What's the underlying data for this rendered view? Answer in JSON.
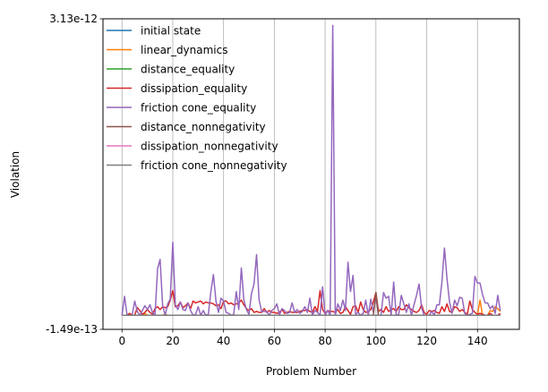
{
  "chart_data": {
    "type": "line",
    "xlabel": "Problem Number",
    "ylabel": "Violation",
    "xlim": [
      -7.5,
      156.5
    ],
    "ylim": [
      -1.49e-13,
      3.13e-12
    ],
    "x_ticks": [
      0,
      20,
      40,
      60,
      80,
      100,
      120,
      140
    ],
    "x_tick_labels": [
      "0",
      "20",
      "40",
      "60",
      "80",
      "100",
      "120",
      "140"
    ],
    "y_ticks": [
      -1.49e-13,
      3.13e-12
    ],
    "y_tick_labels": [
      "-1.49e-13",
      "3.13e-12"
    ],
    "grid": "vertical",
    "legend_position": "top-left",
    "x": {
      "start": 0,
      "end": 149,
      "step": 1
    },
    "series": [
      {
        "name": "initial state",
        "color": "#1f77b4",
        "values": "zero"
      },
      {
        "name": "linear_dynamics",
        "color": "#ff7f0e",
        "values": [
          0,
          0,
          0,
          1e-14,
          0,
          0,
          0,
          0,
          0,
          2e-14,
          0,
          0,
          0,
          0,
          0,
          0,
          0,
          1e-14,
          0,
          0,
          0,
          0,
          0,
          0,
          0,
          0,
          0,
          0,
          0,
          0,
          0,
          0,
          0,
          0,
          0,
          0,
          0,
          0,
          0,
          0,
          0,
          0,
          0,
          0,
          0,
          0,
          0,
          0,
          0,
          0,
          0,
          0,
          0,
          0,
          0,
          0,
          0,
          0,
          0,
          0,
          0,
          0,
          0,
          0,
          0,
          0,
          0,
          0,
          0,
          0,
          0,
          0,
          0,
          0,
          0,
          0,
          0,
          0,
          0,
          0,
          0,
          0,
          0,
          0,
          0,
          0,
          0,
          0,
          0,
          0,
          0,
          0,
          0,
          0,
          0,
          0,
          0,
          0,
          0,
          0,
          0,
          0,
          0,
          0,
          0,
          0,
          0,
          0,
          0,
          0,
          0,
          0,
          0,
          0,
          0,
          0,
          0,
          0,
          0,
          0,
          0,
          0,
          0,
          0,
          0,
          0,
          0,
          0,
          0,
          0,
          0,
          0,
          0,
          0,
          0,
          0,
          0,
          0,
          0,
          0,
          0,
          1.6e-13,
          0,
          0,
          0,
          5e-14,
          4e-14,
          9e-14,
          7e-14,
          4e-14,
          5e-14,
          0,
          5e-14,
          4e-14,
          7e-14
        ]
      },
      {
        "name": "distance_equality",
        "color": "#2ca02c",
        "values": "zero"
      },
      {
        "name": "dissipation_equality",
        "color": "#d62728",
        "values": [
          0,
          0,
          0,
          2e-14,
          0,
          0,
          8e-14,
          5e-14,
          1e-14,
          3e-14,
          6e-14,
          3e-14,
          1e-14,
          7e-14,
          9e-14,
          6e-14,
          9e-14,
          8e-14,
          9e-14,
          1.6e-13,
          2.6e-13,
          9e-14,
          1e-13,
          1.4e-13,
          8e-14,
          1e-13,
          1.3e-13,
          7e-14,
          1.5e-13,
          1.3e-13,
          1.4e-13,
          1.5e-13,
          1.2e-13,
          1.4e-13,
          1.3e-13,
          1.3e-13,
          1.2e-13,
          1e-13,
          1.1e-13,
          7e-14,
          1.5e-13,
          1.5e-13,
          1.2e-13,
          1.3e-13,
          1.1e-13,
          1.2e-13,
          1.3e-13,
          1.6e-13,
          1.1e-13,
          7e-14,
          5e-14,
          7e-14,
          3e-14,
          4e-14,
          3e-14,
          3e-14,
          7e-14,
          3e-14,
          5e-14,
          3e-14,
          3e-14,
          2e-14,
          3e-14,
          6e-14,
          2e-14,
          3e-14,
          4e-14,
          3e-14,
          3e-14,
          3e-14,
          4e-14,
          5e-14,
          5e-14,
          6e-14,
          4e-14,
          3e-14,
          9e-14,
          4e-14,
          2.6e-13,
          6e-14,
          2e-14,
          5e-14,
          4e-14,
          4e-14,
          3e-14,
          6e-14,
          2e-14,
          3e-14,
          9e-14,
          5e-14,
          1e-14,
          9e-14,
          1e-13,
          3e-14,
          1.4e-13,
          6e-14,
          3e-14,
          4e-14,
          6e-14,
          1.4e-13,
          2.4e-13,
          4e-14,
          6e-14,
          3e-14,
          9e-14,
          4e-14,
          6e-14,
          7e-14,
          4e-14,
          9e-14,
          6e-14,
          6e-14,
          1.1e-13,
          8e-14,
          6e-14,
          4e-14,
          3e-14,
          5e-14,
          1.1e-13,
          3e-14,
          1e-14,
          5e-14,
          4e-14,
          5e-14,
          3e-14,
          2e-14,
          9e-14,
          4e-14,
          1.2e-13,
          4e-14,
          3e-14,
          9e-14,
          8e-14,
          4e-14,
          6e-14,
          3e-14,
          1e-14,
          1.5e-13,
          6e-14,
          3e-14,
          1e-14,
          2e-14,
          1e-14,
          0,
          0,
          2e-14,
          0,
          0,
          0,
          2e-14
        ]
      },
      {
        "name": "friction cone_equality",
        "color": "#9467bd",
        "values": [
          0,
          2e-13,
          0,
          0,
          0,
          1.5e-13,
          4e-14,
          0,
          5e-14,
          1e-13,
          6e-14,
          1.1e-13,
          3e-14,
          0,
          4.9e-13,
          5.9e-13,
          1e-13,
          0,
          1.2e-13,
          1.7e-13,
          7.7e-13,
          1.1e-13,
          6e-14,
          1.4e-13,
          6e-14,
          5e-14,
          1.3e-13,
          5e-14,
          0,
          1e-14,
          9e-14,
          0,
          5e-14,
          0,
          1e-14,
          2.5e-13,
          4.3e-13,
          1.5e-13,
          3e-14,
          1.8e-13,
          1.5e-13,
          3e-14,
          2e-14,
          0,
          1e-14,
          2.5e-13,
          6e-14,
          5e-13,
          1.6e-13,
          6e-14,
          1e-14,
          2.3e-13,
          3.3e-13,
          6.4e-13,
          1.6e-13,
          4e-14,
          4e-14,
          4e-14,
          0,
          5e-14,
          7e-14,
          1.2e-13,
          0,
          7e-14,
          5e-14,
          2e-14,
          3e-14,
          1.3e-13,
          3e-14,
          6e-14,
          2e-14,
          4e-14,
          9e-14,
          3e-14,
          1.8e-13,
          0,
          5e-14,
          3e-14,
          0,
          3e-13,
          0,
          5e-14,
          0,
          3.06e-12,
          0,
          1.2e-13,
          5e-14,
          1.6e-13,
          5e-14,
          5.6e-13,
          2.5e-13,
          4.2e-13,
          1e-14,
          3e-14,
          0,
          2e-14,
          1.6e-13,
          0,
          1.7e-13,
          3e-14,
          2e-13,
          0,
          0,
          2.4e-13,
          1.8e-13,
          2e-13,
          0,
          3.5e-13,
          0,
          1e-14,
          2.1e-13,
          1.2e-13,
          3e-14,
          1.2e-13,
          0,
          1.1e-13,
          2.1e-13,
          3.3e-13,
          8e-14,
          0,
          0,
          0,
          4e-14,
          0,
          1.1e-13,
          1.1e-13,
          3.5e-13,
          7.1e-13,
          3.9e-13,
          1.4e-13,
          2e-14,
          1.6e-13,
          1e-13,
          1.9e-13,
          1.8e-13,
          2e-14,
          0,
          1e-14,
          2e-14,
          4.1e-13,
          3.4e-13,
          3.4e-13,
          2.2e-13,
          1.3e-13,
          1.3e-13,
          7e-14,
          1e-13,
          2e-14,
          2.1e-13,
          5e-14,
          1.8e-13,
          2e-14,
          3.3e-13
        ]
      },
      {
        "name": "distance_nonnegativity",
        "color": "#8c564b",
        "values": [
          0,
          0,
          0,
          0,
          0,
          0,
          0,
          0,
          0,
          0,
          0,
          0,
          0,
          0,
          0,
          0,
          0,
          0,
          0,
          0,
          0,
          0,
          0,
          0,
          0,
          0,
          0,
          0,
          0,
          0,
          0,
          0,
          0,
          0,
          0,
          0,
          0,
          0,
          0,
          0,
          0,
          0,
          0,
          0,
          0,
          0,
          0,
          0,
          0,
          0,
          0,
          0,
          0,
          0,
          0,
          0,
          0,
          0,
          0,
          0,
          0,
          0,
          0,
          0,
          0,
          0,
          0,
          0,
          0,
          0,
          0,
          0,
          0,
          0,
          0,
          0,
          0,
          0,
          0,
          0,
          0,
          0,
          0,
          0,
          0,
          0,
          0,
          0,
          0,
          0,
          0,
          0,
          0,
          0,
          0,
          0,
          0,
          0,
          0,
          0,
          2.4e-13,
          0,
          0,
          0,
          0,
          0,
          0,
          0,
          0,
          0,
          0,
          0,
          0,
          0,
          0,
          0,
          0,
          0,
          0,
          0,
          0,
          0,
          0,
          0,
          0,
          0,
          0,
          0,
          0,
          0,
          0,
          0,
          0,
          0,
          0,
          0,
          0,
          0,
          0,
          0,
          0,
          0,
          0,
          0,
          0,
          0,
          0,
          0,
          0,
          0
        ]
      },
      {
        "name": "dissipation_nonnegativity",
        "color": "#e377c2",
        "values": "zero"
      },
      {
        "name": "friction cone_nonnegativity",
        "color": "#7f7f7f",
        "values": "zero"
      }
    ]
  }
}
